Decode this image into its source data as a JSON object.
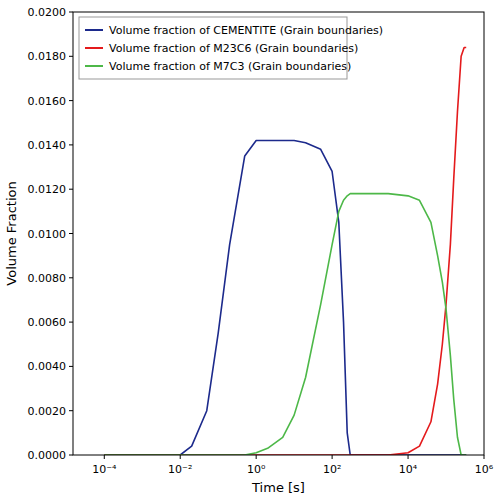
{
  "chart_data": {
    "type": "line",
    "x_label": "Time [s]",
    "y_label": "Volume Fraction",
    "log": "x",
    "grid": false,
    "legend": "upper left",
    "xlim": [
      1.5e-05,
      1000000
    ],
    "ylim": [
      0,
      0.02
    ],
    "xticks": [
      {
        "value": 0.0001,
        "label": "10⁻⁴"
      },
      {
        "value": 0.01,
        "label": "10⁻²"
      },
      {
        "value": 1,
        "label": "10⁰"
      },
      {
        "value": 100,
        "label": "10²"
      },
      {
        "value": 10000,
        "label": "10⁴"
      },
      {
        "value": 1000000,
        "label": "10⁶"
      }
    ],
    "yticks": [
      {
        "value": 0,
        "label": "0.0000"
      },
      {
        "value": 0.002,
        "label": "0.0020"
      },
      {
        "value": 0.004,
        "label": "0.0040"
      },
      {
        "value": 0.006,
        "label": "0.0060"
      },
      {
        "value": 0.008,
        "label": "0.0080"
      },
      {
        "value": 0.01,
        "label": "0.0100"
      },
      {
        "value": 0.012,
        "label": "0.0120"
      },
      {
        "value": 0.014,
        "label": "0.0140"
      },
      {
        "value": 0.016,
        "label": "0.0160"
      },
      {
        "value": 0.018,
        "label": "0.0180"
      },
      {
        "value": 0.02,
        "label": "0.0200"
      }
    ],
    "x": [
      0.0001,
      0.001,
      0.01,
      0.02,
      0.05,
      0.1,
      0.2,
      0.5,
      1,
      2,
      5,
      10,
      20,
      50,
      100,
      150,
      200,
      250,
      300,
      500,
      1000,
      3000,
      10000,
      20000,
      40000,
      60000,
      80000,
      100000,
      130000,
      160000,
      200000,
      250000,
      300000,
      340000
    ],
    "series": [
      {
        "name": "Volume fraction of CEMENTITE (Grain boundaries)",
        "color": "#1c2a8c",
        "values": [
          0,
          0,
          0,
          0.0004,
          0.002,
          0.0055,
          0.0095,
          0.0135,
          0.0142,
          0.0142,
          0.0142,
          0.0142,
          0.0141,
          0.0138,
          0.0128,
          0.0105,
          0.006,
          0.001,
          0,
          0,
          0,
          0,
          0,
          0,
          0,
          0,
          0,
          0,
          0,
          0,
          0,
          0,
          0,
          0
        ]
      },
      {
        "name": "Volume fraction of M23C6 (Grain boundaries)",
        "color": "#e41a1c",
        "values": [
          0,
          0,
          0,
          0,
          0,
          0,
          0,
          0,
          0,
          0,
          0,
          0,
          0,
          0,
          0,
          0,
          0,
          0,
          0,
          0,
          0,
          0,
          0.0001,
          0.0004,
          0.0015,
          0.0032,
          0.005,
          0.0068,
          0.0095,
          0.0125,
          0.0155,
          0.018,
          0.0184,
          0.0184
        ]
      },
      {
        "name": "Volume fraction of M7C3 (Grain boundaries)",
        "color": "#4db848",
        "values": [
          0,
          0,
          0,
          0,
          0,
          0,
          0,
          0,
          0.0001,
          0.0003,
          0.0008,
          0.0018,
          0.0035,
          0.0068,
          0.0095,
          0.011,
          0.0115,
          0.0117,
          0.0118,
          0.0118,
          0.0118,
          0.0118,
          0.0117,
          0.0115,
          0.0105,
          0.009,
          0.0078,
          0.0066,
          0.0045,
          0.0025,
          0.0008,
          0,
          0,
          0
        ]
      }
    ]
  }
}
